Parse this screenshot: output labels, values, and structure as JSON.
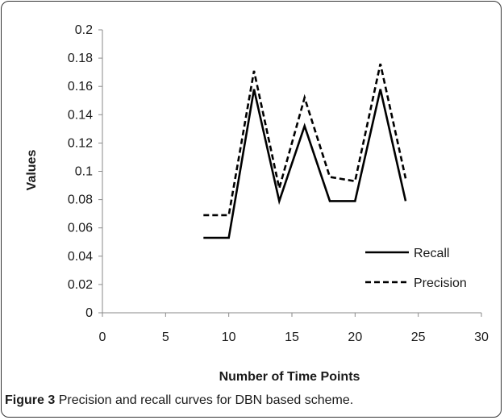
{
  "caption": {
    "label": "Figure 3",
    "text": "Precision and recall curves for DBN based scheme."
  },
  "chart_data": {
    "type": "line",
    "title": "",
    "xlabel": "Number of Time Points",
    "ylabel": "Values",
    "xlim": [
      0,
      30
    ],
    "ylim": [
      0,
      0.2
    ],
    "x_ticks": [
      "0",
      "5",
      "10",
      "15",
      "20",
      "25",
      "30"
    ],
    "y_ticks": [
      "0",
      "0.02",
      "0.04",
      "0.06",
      "0.08",
      "0.1",
      "0.12",
      "0.14",
      "0.16",
      "0.18",
      "0.2"
    ],
    "grid": false,
    "legend_position": "bottom-right",
    "x": [
      8,
      10,
      12,
      14,
      16,
      18,
      20,
      22,
      24
    ],
    "series": [
      {
        "name": "Recall",
        "style": "solid",
        "color": "#000000",
        "values": [
          0.053,
          0.053,
          0.158,
          0.079,
          0.132,
          0.079,
          0.079,
          0.158,
          0.079
        ]
      },
      {
        "name": "Precision",
        "style": "dashed",
        "color": "#000000",
        "values": [
          0.069,
          0.069,
          0.171,
          0.088,
          0.152,
          0.096,
          0.093,
          0.176,
          0.095
        ]
      }
    ]
  }
}
